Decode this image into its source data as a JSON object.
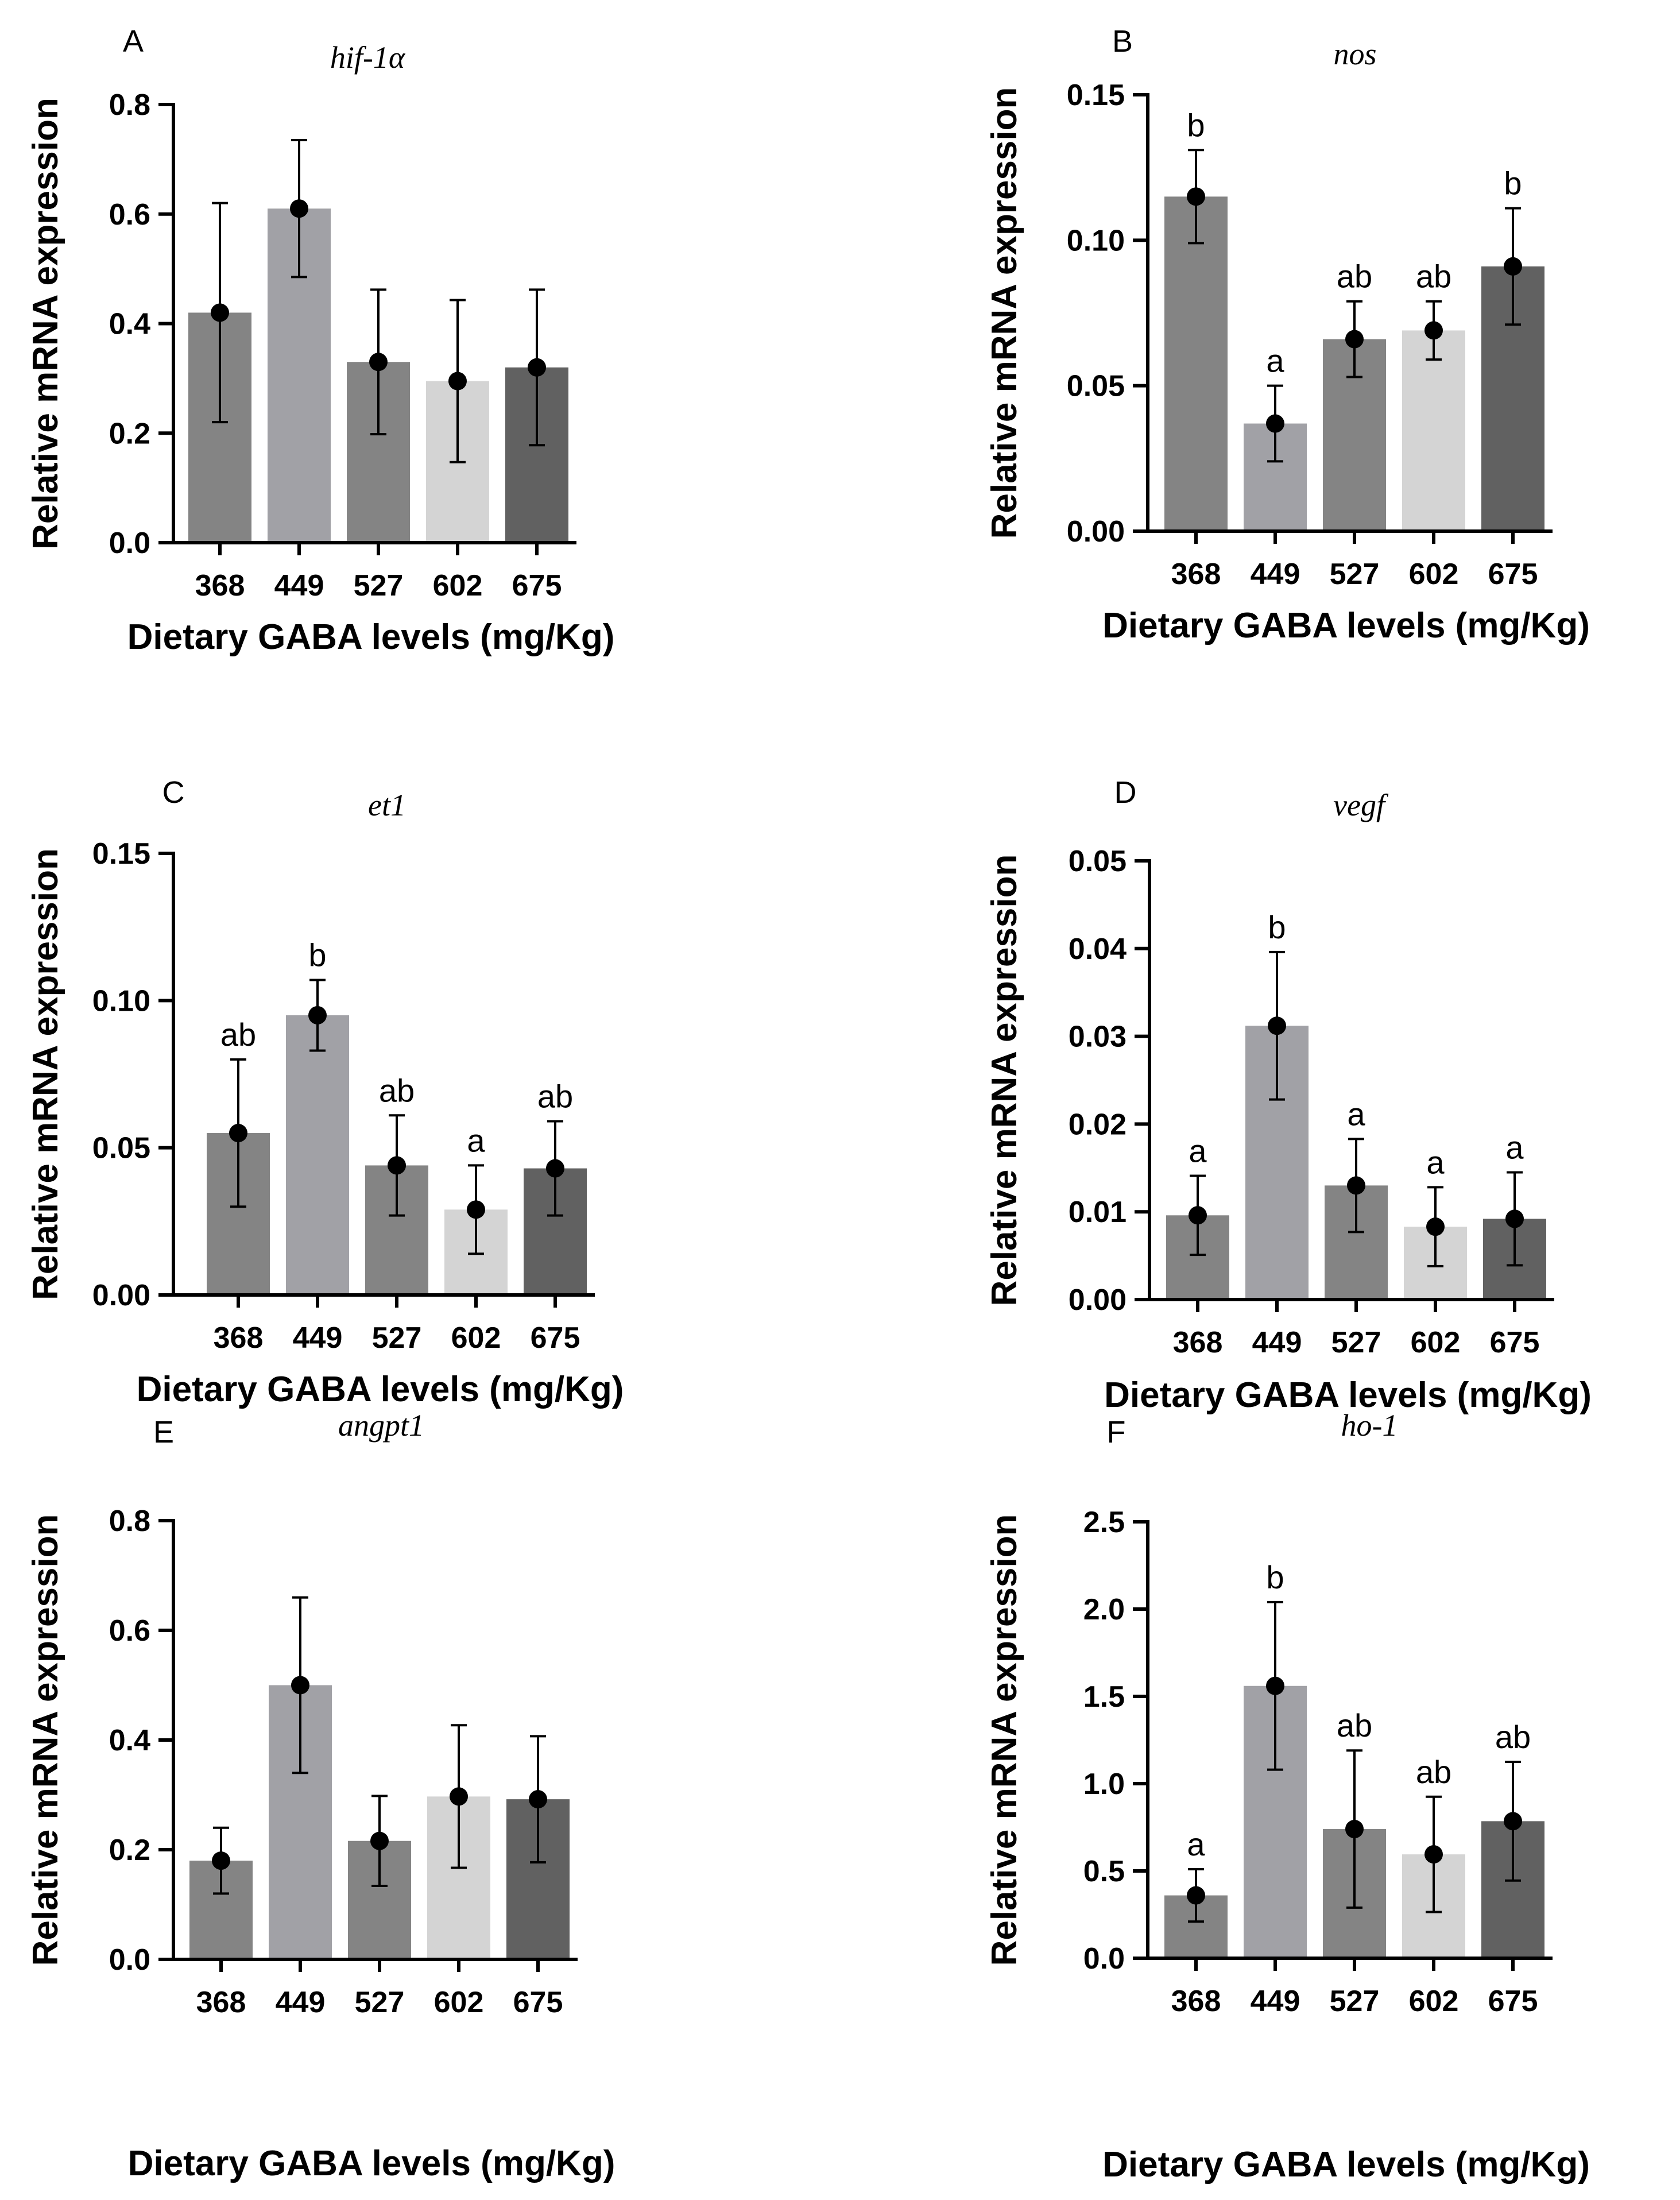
{
  "figure": {
    "shared": {
      "xlabel": "Dietary GABA levels (mg/Kg)",
      "ylabel": "Relative mRNA expression",
      "categories": [
        "368",
        "449",
        "527",
        "602",
        "675"
      ],
      "bar_colors": [
        "#848484",
        "#a1a1a6",
        "#848484",
        "#d4d4d4",
        "#616161"
      ]
    }
  },
  "chart_data": [
    {
      "type": "bar",
      "panel": "A",
      "title": "hif-1α",
      "xlabel": "Dietary GABA levels (mg/Kg)",
      "ylabel": "Relative mRNA expression",
      "categories": [
        "368",
        "449",
        "527",
        "602",
        "675"
      ],
      "values": [
        0.42,
        0.61,
        0.33,
        0.295,
        0.32
      ],
      "errors": [
        0.2,
        0.125,
        0.132,
        0.148,
        0.142
      ],
      "sig": [
        "",
        "",
        "",
        "",
        ""
      ],
      "ylim": [
        0,
        0.8
      ],
      "yticks": [
        "0.0",
        "0.2",
        "0.4",
        "0.6",
        "0.8"
      ]
    },
    {
      "type": "bar",
      "panel": "B",
      "title": "nos",
      "xlabel": "Dietary GABA levels (mg/Kg)",
      "ylabel": "Relative mRNA expression",
      "categories": [
        "368",
        "449",
        "527",
        "602",
        "675"
      ],
      "values": [
        0.115,
        0.037,
        0.066,
        0.069,
        0.091
      ],
      "errors": [
        0.016,
        0.013,
        0.013,
        0.01,
        0.02
      ],
      "sig": [
        "b",
        "a",
        "ab",
        "ab",
        "b"
      ],
      "ylim": [
        0,
        0.15
      ],
      "yticks": [
        "0.00",
        "0.05",
        "0.10",
        "0.15"
      ]
    },
    {
      "type": "bar",
      "panel": "C",
      "title": "et1",
      "xlabel": "Dietary GABA levels (mg/Kg)",
      "ylabel": "Relative mRNA expression",
      "categories": [
        "368",
        "449",
        "527",
        "602",
        "675"
      ],
      "values": [
        0.055,
        0.095,
        0.044,
        0.029,
        0.043
      ],
      "errors": [
        0.025,
        0.012,
        0.017,
        0.015,
        0.016
      ],
      "sig": [
        "ab",
        "b",
        "ab",
        "a",
        "ab"
      ],
      "ylim": [
        0,
        0.15
      ],
      "yticks": [
        "0.00",
        "0.05",
        "0.10",
        "0.15"
      ]
    },
    {
      "type": "bar",
      "panel": "D",
      "title": "vegf",
      "xlabel": "Dietary GABA levels (mg/Kg)",
      "ylabel": "Relative mRNA expression",
      "categories": [
        "368",
        "449",
        "527",
        "602",
        "675"
      ],
      "values": [
        0.0096,
        0.0312,
        0.013,
        0.0083,
        0.0092
      ],
      "errors": [
        0.0045,
        0.0084,
        0.0053,
        0.0045,
        0.0053
      ],
      "sig": [
        "a",
        "b",
        "a",
        "a",
        "a"
      ],
      "ylim": [
        0,
        0.05
      ],
      "yticks": [
        "0.00",
        "0.01",
        "0.02",
        "0.03",
        "0.04",
        "0.05"
      ]
    },
    {
      "type": "bar",
      "panel": "E",
      "title": "angpt1",
      "xlabel": "Dietary GABA levels (mg/Kg)",
      "ylabel": "Relative mRNA expression",
      "categories": [
        "368",
        "449",
        "527",
        "602",
        "675"
      ],
      "values": [
        0.18,
        0.5,
        0.216,
        0.297,
        0.292
      ],
      "errors": [
        0.06,
        0.16,
        0.082,
        0.13,
        0.115
      ],
      "sig": [
        "",
        "",
        "",
        "",
        ""
      ],
      "ylim": [
        0,
        0.8
      ],
      "yticks": [
        "0.0",
        "0.2",
        "0.4",
        "0.6",
        "0.8"
      ]
    },
    {
      "type": "bar",
      "panel": "F",
      "title": "ho-1",
      "xlabel": "Dietary GABA levels (mg/Kg)",
      "ylabel": "Relative mRNA expression",
      "categories": [
        "368",
        "449",
        "527",
        "602",
        "675"
      ],
      "values": [
        0.36,
        1.56,
        0.74,
        0.595,
        0.785
      ],
      "errors": [
        0.15,
        0.48,
        0.45,
        0.33,
        0.34
      ],
      "sig": [
        "a",
        "b",
        "ab",
        "ab",
        "ab"
      ],
      "ylim": [
        0,
        2.5
      ],
      "yticks": [
        "0.0",
        "0.5",
        "1.0",
        "1.5",
        "2.0",
        "2.5"
      ]
    }
  ]
}
